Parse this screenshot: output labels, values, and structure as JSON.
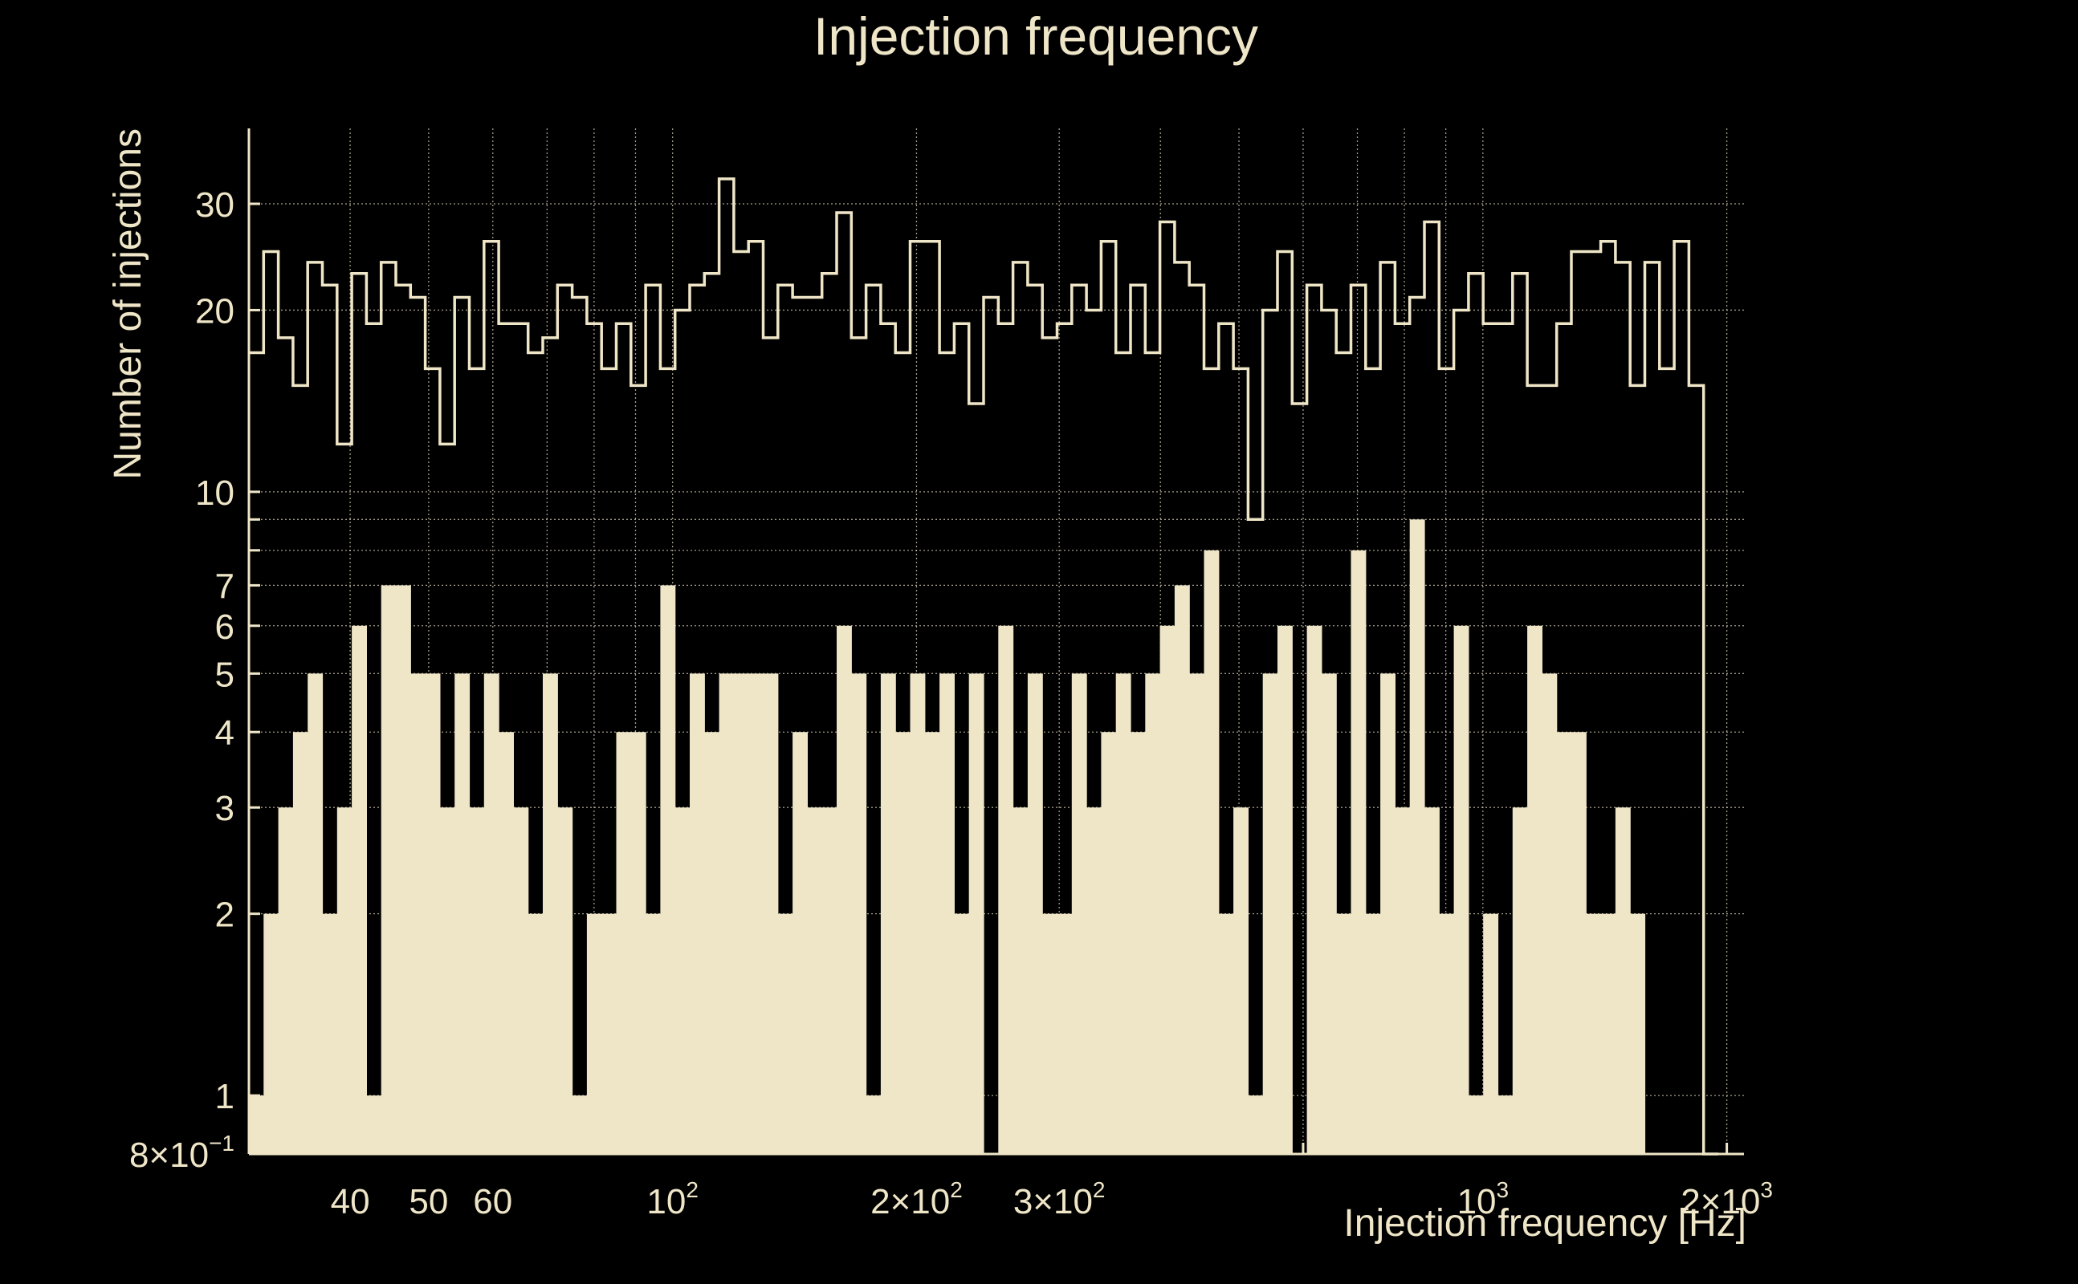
{
  "chart_data": {
    "type": "bar",
    "title": "Injection frequency",
    "xlabel": "Injection frequency [Hz]",
    "ylabel": "Number of injections",
    "xscale": "log",
    "yscale": "log",
    "xlim": [
      30,
      2100
    ],
    "ylim": [
      0.8,
      40
    ],
    "grid": true,
    "x_ticks": [
      {
        "value": 40,
        "label": "40"
      },
      {
        "value": 50,
        "label": "50"
      },
      {
        "value": 60,
        "label": "60"
      },
      {
        "value": 100,
        "label": "10",
        "sup": "2"
      },
      {
        "value": 200,
        "label": "2×10",
        "sup": "2"
      },
      {
        "value": 300,
        "label": "3×10",
        "sup": "2"
      },
      {
        "value": 1000,
        "label": "10",
        "sup": "3"
      },
      {
        "value": 2000,
        "label": "2×10",
        "sup": "3"
      }
    ],
    "y_ticks": [
      {
        "value": 0.8,
        "label": "8×10",
        "sup": "−1"
      },
      {
        "value": 1,
        "label": "1"
      },
      {
        "value": 2,
        "label": "2"
      },
      {
        "value": 3,
        "label": "3"
      },
      {
        "value": 4,
        "label": "4"
      },
      {
        "value": 5,
        "label": "5"
      },
      {
        "value": 6,
        "label": "6"
      },
      {
        "value": 7,
        "label": "7"
      },
      {
        "value": 10,
        "label": "10"
      },
      {
        "value": 20,
        "label": "20"
      },
      {
        "value": 30,
        "label": "30"
      }
    ],
    "series": [
      {
        "style": "step",
        "values": [
          17,
          25,
          18,
          15,
          24,
          22,
          12,
          23,
          19,
          24,
          22,
          21,
          16,
          12,
          21,
          16,
          26,
          19,
          19,
          17,
          18,
          22,
          21,
          19,
          16,
          19,
          15,
          22,
          16,
          20,
          22,
          23,
          33,
          25,
          26,
          18,
          22,
          21,
          21,
          23,
          29,
          18,
          22,
          19,
          17,
          26,
          26,
          17,
          19,
          14,
          21,
          19,
          24,
          22,
          18,
          19,
          22,
          20,
          26,
          17,
          22,
          17,
          28,
          24,
          22,
          16,
          19,
          16,
          9,
          20,
          25,
          14,
          22,
          20,
          17,
          22,
          16,
          24,
          19,
          21,
          28,
          16,
          20,
          23,
          19,
          19,
          23,
          15,
          15,
          19,
          25,
          25,
          26,
          24,
          15,
          24,
          16,
          26,
          15,
          0.8
        ]
      },
      {
        "style": "filled",
        "values": [
          1,
          2,
          3,
          4,
          5,
          2,
          3,
          6,
          1,
          7,
          7,
          5,
          5,
          3,
          5,
          3,
          5,
          4,
          3,
          2,
          5,
          3,
          1,
          2,
          2,
          4,
          4,
          2,
          7,
          3,
          5,
          4,
          5,
          5,
          5,
          5,
          2,
          4,
          3,
          3,
          6,
          5,
          1,
          5,
          4,
          5,
          4,
          5,
          2,
          5,
          0.8,
          6,
          3,
          5,
          2,
          2,
          5,
          3,
          4,
          5,
          4,
          5,
          6,
          7,
          5,
          8,
          2,
          3,
          1,
          5,
          6,
          0.8,
          6,
          5,
          2,
          8,
          2,
          5,
          3,
          9,
          3,
          2,
          6,
          1,
          2,
          1,
          3,
          6,
          5,
          4,
          4,
          2,
          2,
          3,
          2,
          0.8,
          0.8,
          0.8,
          0.8,
          0.8
        ]
      }
    ]
  }
}
